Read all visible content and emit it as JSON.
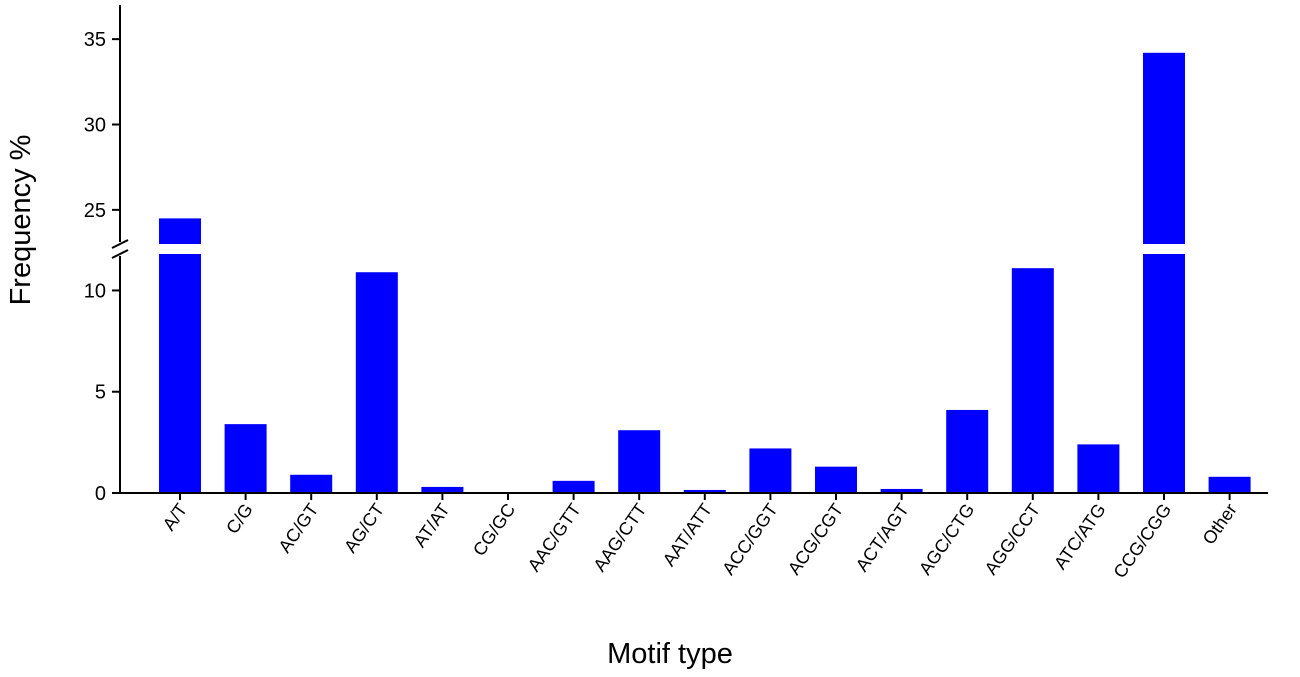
{
  "chart_data": {
    "type": "bar",
    "title": "",
    "xlabel": "Motif type",
    "ylabel": "Frequency %",
    "categories": [
      "A/T",
      "C/G",
      "AC/GT",
      "AG/CT",
      "AT/AT",
      "CG/GC",
      "AAC/GTT",
      "AAG/CTT",
      "AAT/ATT",
      "ACC/GGT",
      "ACG/CGT",
      "ACT/AGT",
      "AGC/CTG",
      "AGG/CCT",
      "ATC/ATG",
      "CCG/CGG",
      "Other"
    ],
    "values": [
      24.5,
      3.4,
      0.9,
      10.9,
      0.3,
      0.0,
      0.6,
      3.1,
      0.15,
      2.2,
      1.3,
      0.2,
      4.1,
      11.1,
      2.4,
      34.2,
      0.8
    ],
    "bar_color": "#0000FF",
    "y_axis_break": [
      11.8,
      23.0
    ],
    "ylim_lower": [
      0,
      11.8
    ],
    "ylim_upper": [
      23.0,
      37.0
    ],
    "yticks_lower": [
      0,
      5,
      10
    ],
    "yticks_upper": [
      25,
      30,
      35
    ],
    "grid": false,
    "legend": "none"
  }
}
